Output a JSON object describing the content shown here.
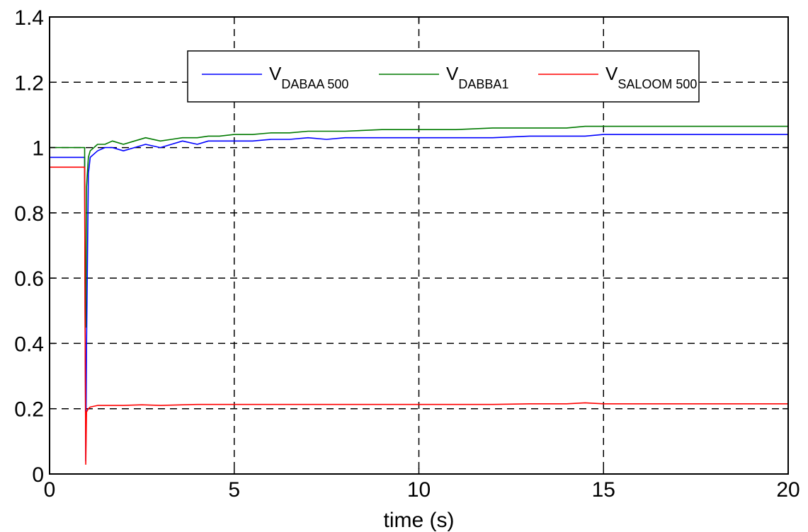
{
  "chart_data": {
    "type": "line",
    "xlabel": "time (s)",
    "ylabel": "",
    "xlim": [
      0,
      20
    ],
    "ylim": [
      0,
      1.4
    ],
    "xticks": [
      "0",
      "5",
      "10",
      "15",
      "20"
    ],
    "yticks": [
      "0",
      "0.2",
      "0.4",
      "0.6",
      "0.8",
      "1",
      "1.2",
      "1.4"
    ],
    "grid": true,
    "legend_position": "top-center",
    "series": [
      {
        "name_main": "V",
        "name_sub": "DABAA 500",
        "color": "#0000ff",
        "x": [
          0,
          0.95,
          0.96,
          0.98,
          1.0,
          1.05,
          1.1,
          1.2,
          1.3,
          1.5,
          1.7,
          2.0,
          2.3,
          2.6,
          3.0,
          3.3,
          3.6,
          4.0,
          4.3,
          4.6,
          5.0,
          5.5,
          6.0,
          6.5,
          7.0,
          7.5,
          8.0,
          9.0,
          10.0,
          11.0,
          12.0,
          13.0,
          14.0,
          14.5,
          15.0,
          16.0,
          18.0,
          20.0
        ],
        "y": [
          0.97,
          0.97,
          0.5,
          0.04,
          0.4,
          0.92,
          0.97,
          0.98,
          0.99,
          1.0,
          1.0,
          0.99,
          1.0,
          1.01,
          1.0,
          1.01,
          1.02,
          1.01,
          1.02,
          1.02,
          1.02,
          1.02,
          1.025,
          1.025,
          1.03,
          1.025,
          1.03,
          1.03,
          1.03,
          1.03,
          1.03,
          1.035,
          1.035,
          1.035,
          1.04,
          1.04,
          1.04,
          1.04
        ]
      },
      {
        "name_main": "V",
        "name_sub": "DABBA1",
        "color": "#007a00",
        "x": [
          0,
          0.95,
          0.96,
          0.98,
          1.0,
          1.05,
          1.1,
          1.2,
          1.3,
          1.5,
          1.7,
          2.0,
          2.3,
          2.6,
          3.0,
          3.3,
          3.6,
          4.0,
          4.3,
          4.6,
          5.0,
          5.5,
          6.0,
          6.5,
          7.0,
          7.5,
          8.0,
          9.0,
          10.0,
          11.0,
          12.0,
          13.0,
          14.0,
          14.5,
          15.0,
          16.0,
          18.0,
          20.0
        ],
        "y": [
          1.0,
          1.0,
          0.6,
          0.45,
          0.88,
          0.97,
          0.99,
          1.0,
          1.01,
          1.01,
          1.02,
          1.01,
          1.02,
          1.03,
          1.02,
          1.025,
          1.03,
          1.03,
          1.035,
          1.035,
          1.04,
          1.04,
          1.045,
          1.045,
          1.05,
          1.05,
          1.05,
          1.055,
          1.055,
          1.055,
          1.06,
          1.06,
          1.06,
          1.065,
          1.065,
          1.065,
          1.065,
          1.065
        ]
      },
      {
        "name_main": "V",
        "name_sub": "SALOOM 500",
        "color": "#ff0000",
        "x": [
          0,
          0.95,
          0.96,
          0.98,
          1.0,
          1.05,
          1.1,
          1.3,
          1.5,
          2.0,
          2.5,
          3.0,
          4.0,
          5.0,
          6.0,
          8.0,
          10.0,
          12.0,
          13.0,
          14.0,
          14.5,
          15.0,
          16.0,
          18.0,
          20.0
        ],
        "y": [
          0.94,
          0.94,
          0.5,
          0.03,
          0.19,
          0.2,
          0.205,
          0.21,
          0.21,
          0.21,
          0.212,
          0.21,
          0.213,
          0.213,
          0.213,
          0.213,
          0.213,
          0.213,
          0.215,
          0.215,
          0.218,
          0.215,
          0.215,
          0.215,
          0.215
        ]
      }
    ]
  }
}
